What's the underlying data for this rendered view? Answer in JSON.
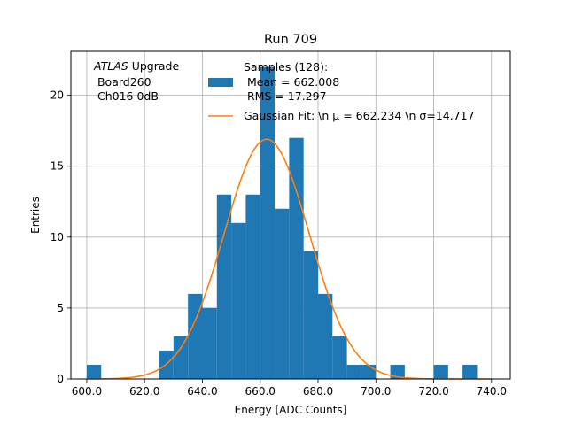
{
  "chart_data": {
    "type": "bar",
    "title": "Run 709",
    "xlabel": "Energy [ADC Counts]",
    "ylabel": "Entries",
    "xlim": [
      594.5,
      746.5
    ],
    "ylim": [
      0,
      23.1
    ],
    "grid": true,
    "xticks": [
      600,
      620,
      640,
      660,
      680,
      700,
      720,
      740
    ],
    "xtick_labels": [
      "600.0",
      "620.0",
      "640.0",
      "660.0",
      "680.0",
      "700.0",
      "720.0",
      "740.0"
    ],
    "yticks": [
      0,
      5,
      10,
      15,
      20
    ],
    "ytick_labels": [
      "0",
      "5",
      "10",
      "15",
      "20"
    ],
    "bin_width": 5,
    "bins": [
      {
        "x0": 600,
        "count": 1
      },
      {
        "x0": 625,
        "count": 2
      },
      {
        "x0": 630,
        "count": 3
      },
      {
        "x0": 635,
        "count": 6
      },
      {
        "x0": 640,
        "count": 5
      },
      {
        "x0": 645,
        "count": 13
      },
      {
        "x0": 650,
        "count": 11
      },
      {
        "x0": 655,
        "count": 13
      },
      {
        "x0": 660,
        "count": 22
      },
      {
        "x0": 665,
        "count": 12
      },
      {
        "x0": 670,
        "count": 17
      },
      {
        "x0": 675,
        "count": 9
      },
      {
        "x0": 680,
        "count": 6
      },
      {
        "x0": 685,
        "count": 3
      },
      {
        "x0": 690,
        "count": 1
      },
      {
        "x0": 695,
        "count": 1
      },
      {
        "x0": 705,
        "count": 1
      },
      {
        "x0": 720,
        "count": 1
      },
      {
        "x0": 730,
        "count": 1
      }
    ],
    "gaussian": {
      "mu": 662.234,
      "sigma": 14.717,
      "amplitude": 16.9,
      "x_range": [
        600,
        740
      ]
    },
    "colors": {
      "hist": "#1f77b4",
      "fit": "#ff7f0e",
      "grid": "#b0b0b0"
    },
    "annotation": {
      "lines": [
        "ATLAS Upgrade",
        " Board260",
        " Ch016 0dB"
      ],
      "italic_word": "ATLAS"
    },
    "legend": {
      "placement": "top-center",
      "hist_lines": [
        "Samples (128):",
        " Mean = 662.008",
        " RMS = 17.297"
      ],
      "fit_label": "Gaussian Fit: \\n μ = 662.234 \\n σ=14.717"
    }
  }
}
